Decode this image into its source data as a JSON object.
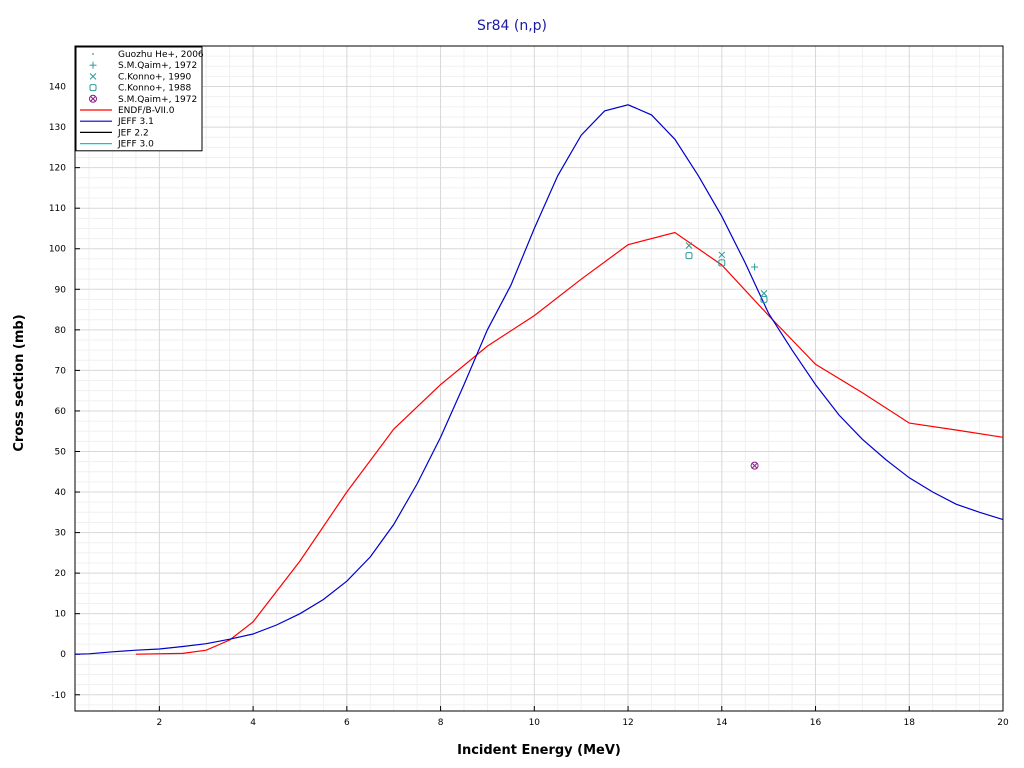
{
  "chart_data": {
    "type": "line",
    "title": "Sr84 (n,p)",
    "xlabel": "Incident Energy (MeV)",
    "ylabel": "Cross section (mb)",
    "xlim": [
      0.2,
      20
    ],
    "ylim": [
      -14,
      150
    ],
    "x_ticks": [
      2,
      4,
      6,
      8,
      10,
      12,
      14,
      16,
      18,
      20
    ],
    "y_ticks": [
      -10,
      0,
      10,
      20,
      30,
      40,
      50,
      60,
      70,
      80,
      90,
      100,
      110,
      120,
      130,
      140
    ],
    "grid": true,
    "legend_position": "top-left",
    "legend": [
      {
        "label": "Guozhu He+, 2006",
        "kind": "marker",
        "symbol": "dot",
        "color": "#2e9a9a"
      },
      {
        "label": "S.M.Qaim+, 1972",
        "kind": "marker",
        "symbol": "plus",
        "color": "#2e9a9a"
      },
      {
        "label": "C.Konno+, 1990",
        "kind": "marker",
        "symbol": "x",
        "color": "#2e9a9a"
      },
      {
        "label": "C.Konno+, 1988",
        "kind": "marker",
        "symbol": "square",
        "color": "#2e9a9a"
      },
      {
        "label": "S.M.Qaim+, 1972",
        "kind": "marker",
        "symbol": "circled-x",
        "color": "#8b1a8b"
      },
      {
        "label": "ENDF/B-VII.0",
        "kind": "line",
        "color": "#ff0000"
      },
      {
        "label": "JEFF 3.1",
        "kind": "line",
        "color": "#0000cc"
      },
      {
        "label": "JEF 2.2",
        "kind": "line",
        "color": "#000000"
      },
      {
        "label": "JEFF 3.0",
        "kind": "line",
        "color": "#00cccc"
      }
    ],
    "series": [
      {
        "name": "ENDF/B-VII.0",
        "color": "#ff0000",
        "points": [
          [
            1.5,
            0
          ],
          [
            2.5,
            0.2
          ],
          [
            3,
            1
          ],
          [
            3.5,
            3.5
          ],
          [
            4,
            8
          ],
          [
            5,
            23
          ],
          [
            6,
            40
          ],
          [
            7,
            55.5
          ],
          [
            8,
            66.5
          ],
          [
            9,
            76
          ],
          [
            10,
            83.5
          ],
          [
            11,
            92.5
          ],
          [
            12,
            101
          ],
          [
            13,
            104
          ],
          [
            14,
            96
          ],
          [
            15,
            83.5
          ],
          [
            16,
            71.5
          ],
          [
            17,
            64.5
          ],
          [
            18,
            57
          ],
          [
            19,
            55.3
          ],
          [
            20,
            53.5
          ]
        ]
      },
      {
        "name": "JEFF 3.1",
        "color": "#0000cc",
        "points": [
          [
            0.2,
            0
          ],
          [
            0.5,
            0.1
          ],
          [
            1,
            0.6
          ],
          [
            1.5,
            1
          ],
          [
            2,
            1.3
          ],
          [
            2.5,
            1.9
          ],
          [
            3,
            2.6
          ],
          [
            3.5,
            3.7
          ],
          [
            4,
            5
          ],
          [
            4.5,
            7.2
          ],
          [
            5,
            10
          ],
          [
            5.5,
            13.5
          ],
          [
            6,
            18
          ],
          [
            6.5,
            24
          ],
          [
            7,
            32
          ],
          [
            7.5,
            42
          ],
          [
            8,
            53.5
          ],
          [
            8.5,
            66.5
          ],
          [
            9,
            80
          ],
          [
            9.5,
            91
          ],
          [
            10,
            105
          ],
          [
            10.5,
            118
          ],
          [
            11,
            128
          ],
          [
            11.5,
            134
          ],
          [
            12,
            135.5
          ],
          [
            12.5,
            133
          ],
          [
            13,
            127
          ],
          [
            13.5,
            118
          ],
          [
            14,
            108
          ],
          [
            14.5,
            96.5
          ],
          [
            15,
            84
          ],
          [
            15.5,
            75
          ],
          [
            16,
            66.5
          ],
          [
            16.5,
            59
          ],
          [
            17,
            53
          ],
          [
            17.5,
            48
          ],
          [
            18,
            43.5
          ],
          [
            18.5,
            40
          ],
          [
            19,
            37
          ],
          [
            19.5,
            35
          ],
          [
            20,
            33.2
          ]
        ]
      }
    ],
    "scatter": [
      {
        "name": "S.M.Qaim+, 1972",
        "symbol": "plus",
        "color": "#2e9a9a",
        "points": [
          [
            14.7,
            95.5
          ]
        ]
      },
      {
        "name": "C.Konno+, 1990",
        "symbol": "x",
        "color": "#2e9a9a",
        "points": [
          [
            13.3,
            100.8
          ],
          [
            14,
            98.5
          ],
          [
            14.9,
            89
          ]
        ]
      },
      {
        "name": "C.Konno+, 1988",
        "symbol": "square",
        "color": "#2e9a9a",
        "points": [
          [
            13.3,
            98.3
          ],
          [
            14,
            96.5
          ],
          [
            14.9,
            87.5
          ]
        ]
      },
      {
        "name": "S.M.Qaim+, 1972",
        "symbol": "circled-x",
        "color": "#8b1a8b",
        "points": [
          [
            14.7,
            46.5
          ]
        ]
      }
    ]
  }
}
